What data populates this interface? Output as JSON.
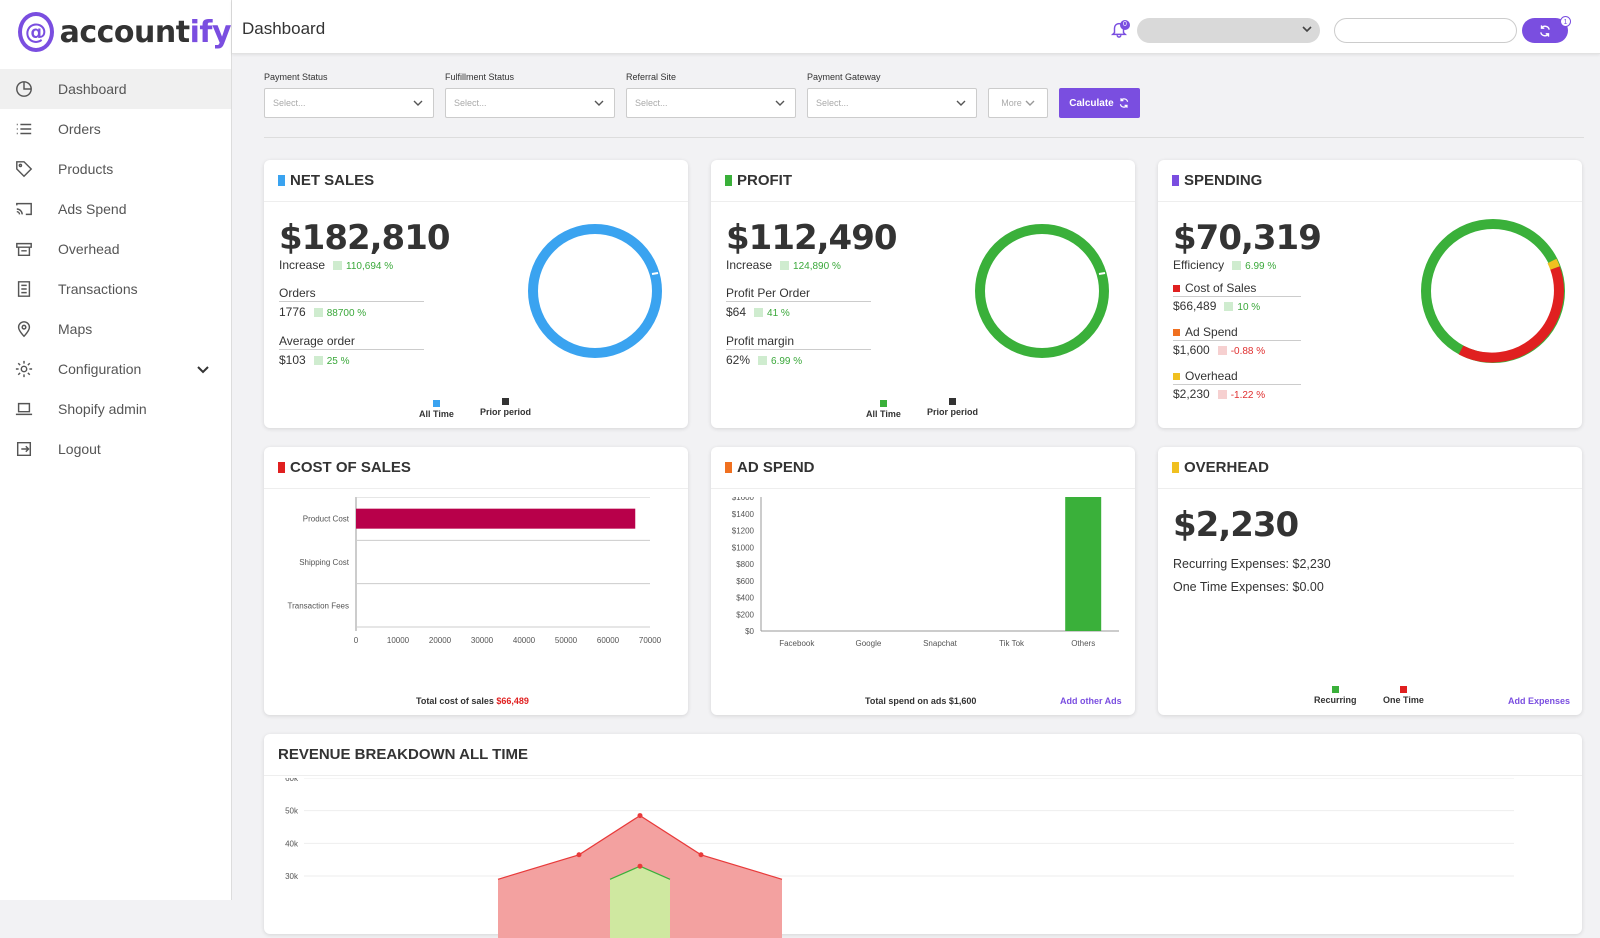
{
  "brand": {
    "logo_mark": "@",
    "name_prefix": "account",
    "name_suffix": "ify",
    "accent": "#7a4ee0"
  },
  "sidebar": {
    "items": [
      {
        "label": "Dashboard",
        "icon": "pie-chart-icon",
        "active": true
      },
      {
        "label": "Orders",
        "icon": "list-icon"
      },
      {
        "label": "Products",
        "icon": "tag-icon"
      },
      {
        "label": "Ads Spend",
        "icon": "cast-icon"
      },
      {
        "label": "Overhead",
        "icon": "store-icon"
      },
      {
        "label": "Transactions",
        "icon": "document-icon"
      },
      {
        "label": "Maps",
        "icon": "map-pin-icon"
      },
      {
        "label": "Configuration",
        "icon": "gear-icon",
        "has_submenu": true
      },
      {
        "label": "Shopify admin",
        "icon": "laptop-icon"
      },
      {
        "label": "Logout",
        "icon": "logout-icon"
      }
    ]
  },
  "header": {
    "title": "Dashboard",
    "notification_count": "0",
    "sync_count": "1"
  },
  "filters": {
    "payment_status": {
      "label": "Payment Status",
      "placeholder": "Select..."
    },
    "fulfillment_status": {
      "label": "Fulfillment Status",
      "placeholder": "Select..."
    },
    "referral_site": {
      "label": "Referral Site",
      "placeholder": "Select..."
    },
    "payment_gateway": {
      "label": "Payment Gateway",
      "placeholder": "Select..."
    },
    "more_label": "More",
    "calculate_label": "Calculate"
  },
  "net_sales": {
    "title": "NET SALES",
    "value": "$182,810",
    "increase_label": "Increase",
    "increase_pct": "110,694 %",
    "orders_label": "Orders",
    "orders_value": "1776",
    "orders_pct": "88700 %",
    "avg_label": "Average order",
    "avg_value": "$103",
    "avg_pct": "25 %",
    "legend_all": "All Time",
    "legend_prior": "Prior period",
    "color": "#3aa3f0",
    "ring_fraction": 0.99
  },
  "profit": {
    "title": "PROFIT",
    "value": "$112,490",
    "increase_label": "Increase",
    "increase_pct": "124,890 %",
    "ppo_label": "Profit Per Order",
    "ppo_value": "$64",
    "ppo_pct": "41 %",
    "margin_label": "Profit margin",
    "margin_value": "62%",
    "margin_pct": "6.99 %",
    "legend_all": "All Time",
    "legend_prior": "Prior period",
    "color": "#3ab03a",
    "ring_fraction": 0.99
  },
  "spending": {
    "title": "SPENDING",
    "value": "$70,319",
    "efficiency_label": "Efficiency",
    "efficiency_pct": "6.99 %",
    "cos_label": "Cost of Sales",
    "cos_value": "$66,489",
    "cos_pct": "10 %",
    "ads_label": "Ad Spend",
    "ads_value": "$1,600",
    "ads_pct": "-0.88 %",
    "overhead_label": "Overhead",
    "overhead_value": "$2,230",
    "overhead_pct": "-1.22 %",
    "colors": {
      "header": "#7a4ee0",
      "cos": "#e02020",
      "ads": "#f07020",
      "overhead": "#f0c020",
      "ring_main": "#3ab03a"
    }
  },
  "cost_of_sales": {
    "title": "COST OF SALES",
    "footnote": "Total cost of sales",
    "footnote_value": "$66,489"
  },
  "ad_spend": {
    "title": "AD SPEND",
    "footnote": "Total spend on ads $1,600",
    "link": "Add other Ads"
  },
  "overhead": {
    "title": "OVERHEAD",
    "value": "$2,230",
    "recurring_line": "Recurring Expenses: $2,230",
    "onetime_line": "One Time Expenses: $0.00",
    "legend_recurring": "Recurring",
    "legend_onetime": "One Time",
    "link": "Add Expenses"
  },
  "revenue": {
    "title": "REVENUE BREAKDOWN ALL TIME"
  },
  "chart_data": [
    {
      "type": "bar",
      "orientation": "horizontal",
      "categories": [
        "Product Cost",
        "Shipping Cost",
        "Transaction Fees"
      ],
      "values": [
        66489,
        0,
        0
      ],
      "xlim": [
        0,
        70000
      ],
      "xticks": [
        "0",
        "10000",
        "20000",
        "30000",
        "40000",
        "50000",
        "60000",
        "70000"
      ],
      "color": "#b8004a"
    },
    {
      "type": "bar",
      "categories": [
        "Facebook",
        "Google",
        "Snapchat",
        "Tik Tok",
        "Others"
      ],
      "values": [
        0,
        0,
        0,
        0,
        1600
      ],
      "ylim": [
        0,
        1600
      ],
      "yticks": [
        "$0",
        "$200",
        "$400",
        "$600",
        "$800",
        "$1000",
        "$1200",
        "$1400",
        "$1600"
      ],
      "color": "#3ab03a"
    },
    {
      "type": "area",
      "yticks": [
        "30k",
        "40k",
        "50k",
        "60k"
      ],
      "ylim": [
        30000,
        60000
      ],
      "series": [
        {
          "color": "#e83a3a",
          "values": [
            29000,
            36500,
            48500,
            36500,
            29000
          ]
        },
        {
          "color": "#3ab03a",
          "values": [
            29000,
            33000,
            29000
          ]
        }
      ]
    }
  ]
}
